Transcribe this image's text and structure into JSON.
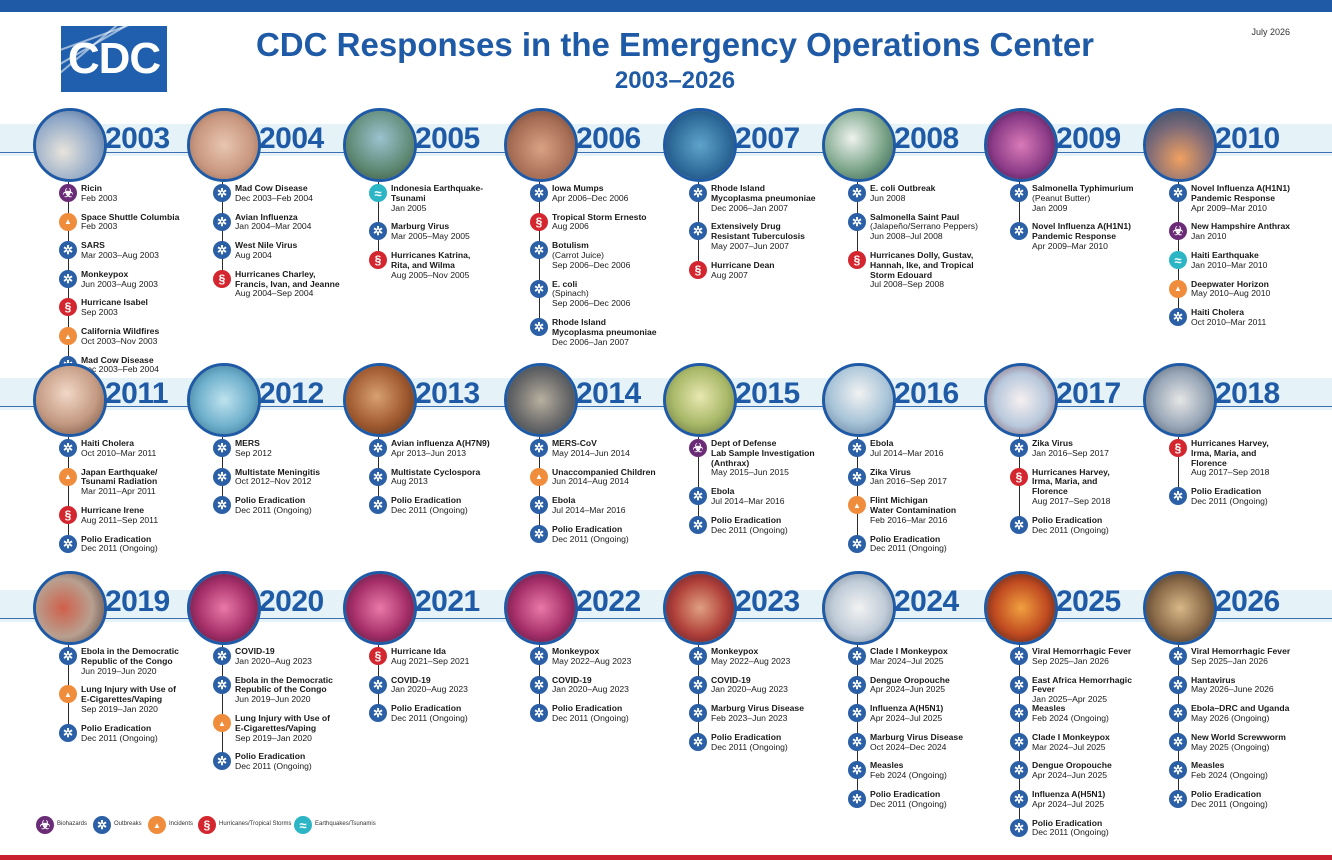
{
  "header": {
    "logo_text": "CDC",
    "title": "CDC Responses in the Emergency Operations Center",
    "subtitle": "2003–2026",
    "date": "July 2026"
  },
  "colors": {
    "brand_blue": "#1f5aa6",
    "band": "#e5f3f8",
    "outbreak": "#2b5fa6",
    "biohazard": "#6b2c77",
    "incident": "#f08d3c",
    "hurricane": "#d3262f",
    "quake": "#2bb5c5",
    "bottom_bar": "#c8202e"
  },
  "legend": [
    {
      "type": "biohazard",
      "label": "Biohazards"
    },
    {
      "type": "outbreak",
      "label": "Outbreaks"
    },
    {
      "type": "incident",
      "label": "Incidents"
    },
    {
      "type": "hurricane",
      "label": "Hurricanes/Tropical Storms"
    },
    {
      "type": "quake",
      "label": "Earthquakes/Tsunamis"
    }
  ],
  "years": [
    {
      "year": "2003",
      "items": [
        {
          "type": "biohazard",
          "lines": [
            "Ricin"
          ],
          "dates": "Feb 2003"
        },
        {
          "type": "incident",
          "lines": [
            "Space Shuttle Columbia"
          ],
          "dates": "Feb 2003"
        },
        {
          "type": "outbreak",
          "lines": [
            "SARS"
          ],
          "dates": "Mar 2003–Aug 2003"
        },
        {
          "type": "outbreak",
          "lines": [
            "Monkeypox"
          ],
          "dates": "Jun 2003–Aug 2003"
        },
        {
          "type": "hurricane",
          "lines": [
            "Hurricane Isabel"
          ],
          "dates": "Sep 2003"
        },
        {
          "type": "incident",
          "lines": [
            "California Wildfires"
          ],
          "dates": "Oct 2003–Nov 2003"
        },
        {
          "type": "outbreak",
          "lines": [
            "Mad Cow Disease"
          ],
          "dates": "Dec 2003–Feb 2004"
        }
      ]
    },
    {
      "year": "2004",
      "items": [
        {
          "type": "outbreak",
          "lines": [
            "Mad Cow Disease"
          ],
          "dates": "Dec 2003–Feb 2004"
        },
        {
          "type": "outbreak",
          "lines": [
            "Avian Influenza"
          ],
          "dates": "Jan 2004–Mar 2004"
        },
        {
          "type": "outbreak",
          "lines": [
            "West Nile Virus"
          ],
          "dates": "Aug 2004"
        },
        {
          "type": "hurricane",
          "lines": [
            "Hurricanes Charley,",
            "Francis, Ivan, and Jeanne"
          ],
          "dates": "Aug 2004–Sep 2004"
        }
      ]
    },
    {
      "year": "2005",
      "items": [
        {
          "type": "quake",
          "lines": [
            "Indonesia Earthquake-",
            "Tsunami"
          ],
          "dates": "Jan 2005"
        },
        {
          "type": "outbreak",
          "lines": [
            "Marburg Virus"
          ],
          "dates": "Mar 2005–May 2005"
        },
        {
          "type": "hurricane",
          "lines": [
            "Hurricanes Katrina,",
            "Rita, and Wilma"
          ],
          "dates": "Aug 2005–Nov 2005"
        }
      ]
    },
    {
      "year": "2006",
      "items": [
        {
          "type": "outbreak",
          "lines": [
            "Iowa Mumps"
          ],
          "dates": "Apr 2006–Dec 2006"
        },
        {
          "type": "hurricane",
          "lines": [
            "Tropical Storm Ernesto"
          ],
          "dates": "Aug 2006"
        },
        {
          "type": "outbreak",
          "lines": [
            "Botulism"
          ],
          "note": "(Carrot Juice)",
          "dates": "Sep 2006–Dec 2006"
        },
        {
          "type": "outbreak",
          "lines": [
            "E. coli"
          ],
          "note": "(Spinach)",
          "dates": "Sep 2006–Dec 2006"
        },
        {
          "type": "outbreak",
          "lines": [
            "Rhode Island",
            "Mycoplasma pneumoniae"
          ],
          "dates": "Dec 2006–Jan 2007"
        }
      ]
    },
    {
      "year": "2007",
      "items": [
        {
          "type": "outbreak",
          "lines": [
            "Rhode Island",
            "Mycoplasma pneumoniae"
          ],
          "dates": "Dec 2006–Jan 2007"
        },
        {
          "type": "outbreak",
          "lines": [
            "Extensively Drug",
            "Resistant Tuberculosis"
          ],
          "dates": "May 2007–Jun 2007"
        },
        {
          "type": "hurricane",
          "lines": [
            "Hurricane Dean"
          ],
          "dates": "Aug 2007"
        }
      ]
    },
    {
      "year": "2008",
      "items": [
        {
          "type": "outbreak",
          "lines": [
            "E. coli Outbreak"
          ],
          "dates": "Jun 2008"
        },
        {
          "type": "outbreak",
          "lines": [
            "Salmonella Saint Paul"
          ],
          "note": "(Jalapeño/Serrano Peppers)",
          "dates": "Jun 2008–Jul 2008"
        },
        {
          "type": "hurricane",
          "lines": [
            "Hurricanes Dolly, Gustav,",
            "Hannah, Ike, and Tropical",
            "Storm Edouard"
          ],
          "dates": "Jul 2008–Sep 2008"
        }
      ]
    },
    {
      "year": "2009",
      "items": [
        {
          "type": "outbreak",
          "lines": [
            "Salmonella Typhimurium"
          ],
          "note": "(Peanut Butter)",
          "dates": "Jan 2009"
        },
        {
          "type": "outbreak",
          "lines": [
            "Novel Influenza A(H1N1)",
            "Pandemic Response"
          ],
          "dates": "Apr 2009–Mar 2010"
        }
      ]
    },
    {
      "year": "2010",
      "items": [
        {
          "type": "outbreak",
          "lines": [
            "Novel Influenza A(H1N1)",
            "Pandemic Response"
          ],
          "dates": "Apr 2009–Mar 2010"
        },
        {
          "type": "biohazard",
          "lines": [
            "New Hampshire Anthrax"
          ],
          "dates": "Jan 2010"
        },
        {
          "type": "quake",
          "lines": [
            "Haiti Earthquake"
          ],
          "dates": "Jan 2010–Mar 2010"
        },
        {
          "type": "incident",
          "lines": [
            "Deepwater Horizon"
          ],
          "dates": "May 2010–Aug 2010"
        },
        {
          "type": "outbreak",
          "lines": [
            "Haiti Cholera"
          ],
          "dates": "Oct 2010–Mar 2011"
        }
      ]
    },
    {
      "year": "2011",
      "items": [
        {
          "type": "outbreak",
          "lines": [
            "Haiti Cholera"
          ],
          "dates": "Oct 2010–Mar 2011"
        },
        {
          "type": "incident",
          "lines": [
            "Japan Earthquake/",
            "Tsunami Radiation"
          ],
          "dates": "Mar 2011–Apr 2011"
        },
        {
          "type": "hurricane",
          "lines": [
            "Hurricane Irene"
          ],
          "dates": "Aug 2011–Sep 2011"
        },
        {
          "type": "outbreak",
          "lines": [
            "Polio Eradication"
          ],
          "dates": "Dec 2011 (Ongoing)"
        }
      ]
    },
    {
      "year": "2012",
      "items": [
        {
          "type": "outbreak",
          "lines": [
            "MERS"
          ],
          "dates": "Sep 2012"
        },
        {
          "type": "outbreak",
          "lines": [
            "Multistate Meningitis"
          ],
          "dates": "Oct 2012–Nov 2012"
        },
        {
          "type": "outbreak",
          "lines": [
            "Polio Eradication"
          ],
          "dates": "Dec 2011 (Ongoing)"
        }
      ]
    },
    {
      "year": "2013",
      "items": [
        {
          "type": "outbreak",
          "lines": [
            "Avian influenza A(H7N9)"
          ],
          "dates": "Apr 2013–Jun 2013"
        },
        {
          "type": "outbreak",
          "lines": [
            "Multistate Cyclospora"
          ],
          "dates": "Aug 2013"
        },
        {
          "type": "outbreak",
          "lines": [
            "Polio Eradication"
          ],
          "dates": "Dec 2011 (Ongoing)"
        }
      ]
    },
    {
      "year": "2014",
      "items": [
        {
          "type": "outbreak",
          "lines": [
            "MERS-CoV"
          ],
          "dates": "May 2014–Jun 2014"
        },
        {
          "type": "incident",
          "lines": [
            "Unaccompanied Children"
          ],
          "dates": "Jun 2014–Aug 2014"
        },
        {
          "type": "outbreak",
          "lines": [
            "Ebola"
          ],
          "dates": "Jul 2014–Mar 2016"
        },
        {
          "type": "outbreak",
          "lines": [
            "Polio Eradication"
          ],
          "dates": "Dec 2011 (Ongoing)"
        }
      ]
    },
    {
      "year": "2015",
      "items": [
        {
          "type": "biohazard",
          "lines": [
            "Dept of Defense",
            "Lab Sample Investigation",
            "(Anthrax)"
          ],
          "dates": "May 2015–Jun 2015"
        },
        {
          "type": "outbreak",
          "lines": [
            "Ebola"
          ],
          "dates": "Jul 2014–Mar 2016"
        },
        {
          "type": "outbreak",
          "lines": [
            "Polio Eradication"
          ],
          "dates": "Dec 2011 (Ongoing)"
        }
      ]
    },
    {
      "year": "2016",
      "items": [
        {
          "type": "outbreak",
          "lines": [
            "Ebola"
          ],
          "dates": "Jul 2014–Mar 2016"
        },
        {
          "type": "outbreak",
          "lines": [
            "Zika Virus"
          ],
          "dates": "Jan 2016–Sep 2017"
        },
        {
          "type": "incident",
          "lines": [
            "Flint Michigan",
            "Water Contamination"
          ],
          "dates": "Feb 2016–Mar 2016"
        },
        {
          "type": "outbreak",
          "lines": [
            "Polio Eradication"
          ],
          "dates": "Dec 2011 (Ongoing)"
        }
      ]
    },
    {
      "year": "2017",
      "items": [
        {
          "type": "outbreak",
          "lines": [
            "Zika Virus"
          ],
          "dates": "Jan 2016–Sep 2017"
        },
        {
          "type": "hurricane",
          "lines": [
            "Hurricanes Harvey,",
            "Irma, Maria, and",
            "Florence"
          ],
          "dates": "Aug 2017–Sep 2018"
        },
        {
          "type": "outbreak",
          "lines": [
            "Polio Eradication"
          ],
          "dates": "Dec 2011 (Ongoing)"
        }
      ]
    },
    {
      "year": "2018",
      "items": [
        {
          "type": "hurricane",
          "lines": [
            "Hurricanes Harvey,",
            "Irma, Maria, and",
            "Florence"
          ],
          "dates": "Aug 2017–Sep 2018"
        },
        {
          "type": "outbreak",
          "lines": [
            "Polio Eradication"
          ],
          "dates": "Dec 2011 (Ongoing)"
        }
      ]
    },
    {
      "year": "2019",
      "items": [
        {
          "type": "outbreak",
          "lines": [
            "Ebola in the Democratic",
            "Republic of the Congo"
          ],
          "dates": "Jun 2019–Jun 2020"
        },
        {
          "type": "incident",
          "lines": [
            "Lung Injury with Use of",
            "E-Cigarettes/Vaping"
          ],
          "dates": "Sep 2019–Jan 2020"
        },
        {
          "type": "outbreak",
          "lines": [
            "Polio Eradication"
          ],
          "dates": "Dec 2011 (Ongoing)"
        }
      ]
    },
    {
      "year": "2020",
      "items": [
        {
          "type": "outbreak",
          "lines": [
            "COVID-19"
          ],
          "dates": "Jan 2020–Aug 2023"
        },
        {
          "type": "outbreak",
          "lines": [
            "Ebola in the Democratic",
            "Republic of the Congo"
          ],
          "dates": "Jun 2019–Jun 2020"
        },
        {
          "type": "incident",
          "lines": [
            "Lung Injury with Use of",
            "E-Cigarettes/Vaping"
          ],
          "dates": "Sep 2019–Jan 2020"
        },
        {
          "type": "outbreak",
          "lines": [
            "Polio Eradication"
          ],
          "dates": "Dec 2011 (Ongoing)"
        }
      ]
    },
    {
      "year": "2021",
      "items": [
        {
          "type": "hurricane",
          "lines": [
            "Hurricane Ida"
          ],
          "dates": "Aug 2021–Sep 2021"
        },
        {
          "type": "outbreak",
          "lines": [
            "COVID-19"
          ],
          "dates": "Jan 2020–Aug 2023"
        },
        {
          "type": "outbreak",
          "lines": [
            "Polio Eradication"
          ],
          "dates": "Dec 2011 (Ongoing)"
        }
      ]
    },
    {
      "year": "2022",
      "items": [
        {
          "type": "outbreak",
          "lines": [
            "Monkeypox"
          ],
          "dates": "May 2022–Aug 2023"
        },
        {
          "type": "outbreak",
          "lines": [
            "COVID-19"
          ],
          "dates": "Jan 2020–Aug 2023"
        },
        {
          "type": "outbreak",
          "lines": [
            "Polio Eradication"
          ],
          "dates": "Dec 2011 (Ongoing)"
        }
      ]
    },
    {
      "year": "2023",
      "items": [
        {
          "type": "outbreak",
          "lines": [
            "Monkeypox"
          ],
          "dates": "May 2022–Aug 2023"
        },
        {
          "type": "outbreak",
          "lines": [
            "COVID-19"
          ],
          "dates": "Jan 2020–Aug 2023"
        },
        {
          "type": "outbreak",
          "lines": [
            "Marburg Virus Disease"
          ],
          "dates": "Feb 2023–Jun 2023"
        },
        {
          "type": "outbreak",
          "lines": [
            "Polio Eradication"
          ],
          "dates": "Dec 2011 (Ongoing)"
        }
      ]
    },
    {
      "year": "2024",
      "items": [
        {
          "type": "outbreak",
          "lines": [
            "Clade I Monkeypox"
          ],
          "dates": "Mar 2024–Jul 2025"
        },
        {
          "type": "outbreak",
          "lines": [
            "Dengue Oropouche"
          ],
          "dates": "Apr 2024–Jun 2025"
        },
        {
          "type": "outbreak",
          "lines": [
            "Influenza A(H5N1)"
          ],
          "dates": "Apr 2024–Jul 2025"
        },
        {
          "type": "outbreak",
          "lines": [
            "Marburg Virus Disease"
          ],
          "dates": "Oct 2024–Dec 2024"
        },
        {
          "type": "outbreak",
          "lines": [
            "Measles"
          ],
          "dates": "Feb 2024 (Ongoing)"
        },
        {
          "type": "outbreak",
          "lines": [
            "Polio Eradication"
          ],
          "dates": "Dec 2011 (Ongoing)"
        }
      ]
    },
    {
      "year": "2025",
      "items": [
        {
          "type": "outbreak",
          "lines": [
            "Viral Hemorrhagic Fever"
          ],
          "dates": "Sep 2025–Jan 2026"
        },
        {
          "type": "outbreak",
          "lines": [
            "East Africa Hemorrhagic Fever"
          ],
          "dates": "Jan 2025–Apr 2025"
        },
        {
          "type": "outbreak",
          "lines": [
            "Measles"
          ],
          "dates": "Feb 2024 (Ongoing)"
        },
        {
          "type": "outbreak",
          "lines": [
            "Clade I Monkeypox"
          ],
          "dates": "Mar 2024–Jul 2025"
        },
        {
          "type": "outbreak",
          "lines": [
            "Dengue Oropouche"
          ],
          "dates": "Apr 2024–Jun 2025"
        },
        {
          "type": "outbreak",
          "lines": [
            "Influenza A(H5N1)"
          ],
          "dates": "Apr 2024–Jul 2025"
        },
        {
          "type": "outbreak",
          "lines": [
            "Polio Eradication"
          ],
          "dates": "Dec 2011 (Ongoing)"
        }
      ]
    },
    {
      "year": "2026",
      "items": [
        {
          "type": "outbreak",
          "lines": [
            "Viral Hemorrhagic Fever"
          ],
          "dates": "Sep 2025–Jan 2026"
        },
        {
          "type": "outbreak",
          "lines": [
            "Hantavirus"
          ],
          "dates": "May 2026–June 2026"
        },
        {
          "type": "outbreak",
          "lines": [
            "Ebola–DRC and Uganda"
          ],
          "dates": "May 2026 (Ongoing)"
        },
        {
          "type": "outbreak",
          "lines": [
            "New World Screwworm"
          ],
          "dates": "May 2025 (Ongoing)"
        },
        {
          "type": "outbreak",
          "lines": [
            "Measles"
          ],
          "dates": "Feb 2024 (Ongoing)"
        },
        {
          "type": "outbreak",
          "lines": [
            "Polio Eradication"
          ],
          "dates": "Dec 2011 (Ongoing)"
        }
      ]
    }
  ]
}
